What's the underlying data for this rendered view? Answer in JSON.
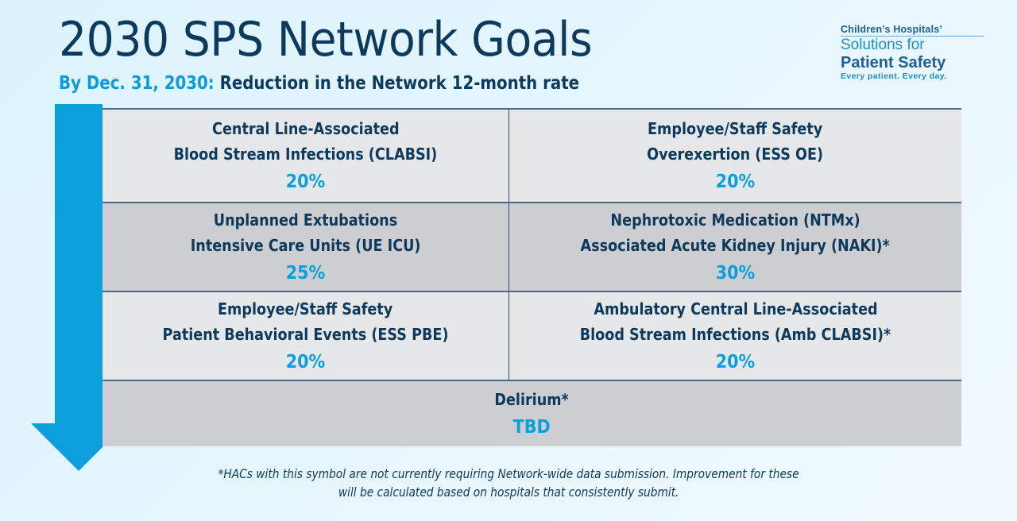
{
  "header": {
    "title": "2030 SPS Network Goals",
    "subtitle_accent": "By Dec. 31, 2030:",
    "subtitle_rest": "Reduction in the Network 12-month rate"
  },
  "logo": {
    "line1": "Children’s Hospitals’",
    "line2": "Solutions for",
    "line3": "Patient Safety",
    "line4": "Every patient. Every day."
  },
  "colors": {
    "title": "#0d3a5c",
    "accent": "#0d9fdc",
    "cell_light": "#e6e7e9",
    "cell_dark": "#cdced1",
    "border": "#4d6a80"
  },
  "goals": [
    {
      "line1": "Central Line-Associated",
      "line2": "Blood Stream Infections (CLABSI)",
      "value": "20%"
    },
    {
      "line1": "Employee/Staff Safety",
      "line2": "Overexertion (ESS OE)",
      "value": "20%"
    },
    {
      "line1": "Unplanned Extubations",
      "line2": "Intensive Care Units (UE ICU)",
      "value": "25%"
    },
    {
      "line1": "Nephrotoxic Medication (NTMx)",
      "line2": "Associated Acute Kidney Injury (NAKI)*",
      "value": "30%"
    },
    {
      "line1": "Employee/Staff Safety",
      "line2": "Patient Behavioral Events (ESS PBE)",
      "value": "20%"
    },
    {
      "line1": "Ambulatory Central Line-Associated",
      "line2": "Blood Stream Infections (Amb CLABSI)*",
      "value": "20%"
    },
    {
      "line1": "Delirium*",
      "value": "TBD"
    }
  ],
  "footnote": {
    "line1": "*HACs with this symbol are not currently requiring Network-wide data submission. Improvement for these",
    "line2": "will be calculated based on hospitals that consistently submit."
  }
}
